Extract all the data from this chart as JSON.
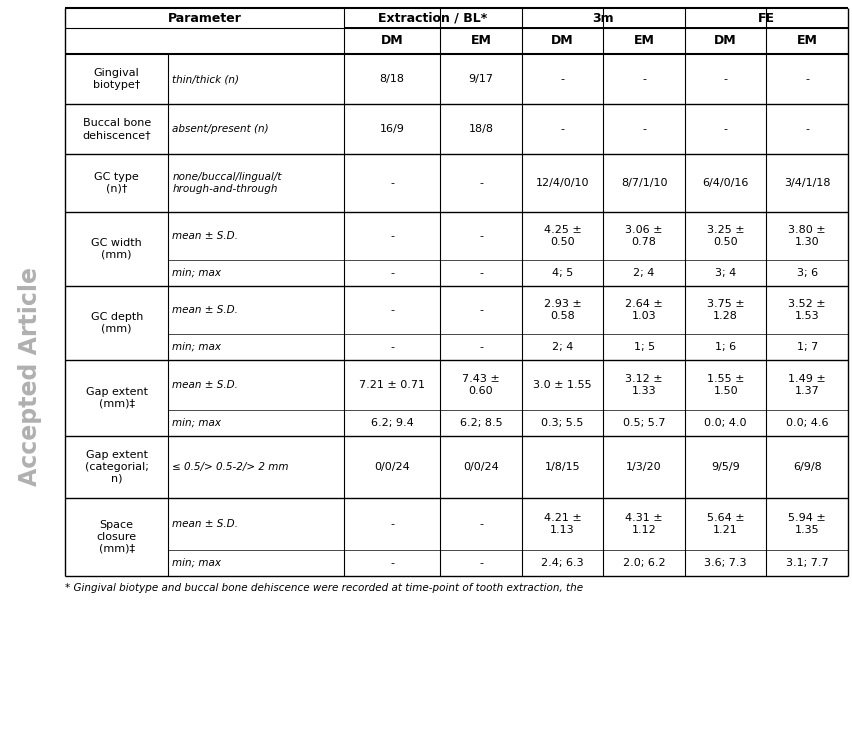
{
  "col_groups": [
    {
      "label": "Extraction / BL*",
      "cols": [
        2,
        3
      ]
    },
    {
      "label": "3m",
      "cols": [
        4,
        5
      ]
    },
    {
      "label": "FE",
      "cols": [
        6,
        7
      ]
    }
  ],
  "rows": [
    {
      "param": "Gingival\nbiotype†",
      "subparam": "thin/thick (n)",
      "cells": [
        "8/18",
        "9/17",
        "-",
        "-",
        "-",
        "-"
      ],
      "has_subrow": false
    },
    {
      "param": "Buccal bone\ndehiscence†",
      "subparam": "absent/present (n)",
      "cells": [
        "16/9",
        "18/8",
        "-",
        "-",
        "-",
        "-"
      ],
      "has_subrow": false
    },
    {
      "param": "GC type\n(n)†",
      "subparam": "none/buccal/lingual/t\nhrough-and-through",
      "cells": [
        "-",
        "-",
        "12/4/0/10",
        "8/7/1/10",
        "6/4/0/16",
        "3/4/1/18"
      ],
      "has_subrow": false
    },
    {
      "param": "GC width\n(mm)",
      "subparam": "mean ± S.D.",
      "cells": [
        "-",
        "-",
        "4.25 ±\n0.50",
        "3.06 ±\n0.78",
        "3.25 ±\n0.50",
        "3.80 ±\n1.30"
      ],
      "has_subrow": true,
      "subrow_subparam": "min; max",
      "subrow_cells": [
        "-",
        "-",
        "4; 5",
        "2; 4",
        "3; 4",
        "3; 6"
      ]
    },
    {
      "param": "GC depth\n(mm)",
      "subparam": "mean ± S.D.",
      "cells": [
        "-",
        "-",
        "2.93 ±\n0.58",
        "2.64 ±\n1.03",
        "3.75 ±\n1.28",
        "3.52 ±\n1.53"
      ],
      "has_subrow": true,
      "subrow_subparam": "min; max",
      "subrow_cells": [
        "-",
        "-",
        "2; 4",
        "1; 5",
        "1; 6",
        "1; 7"
      ]
    },
    {
      "param": "Gap extent\n(mm)‡",
      "subparam": "mean ± S.D.",
      "cells": [
        "7.21 ± 0.71",
        "7.43 ±\n0.60",
        "3.0 ± 1.55",
        "3.12 ±\n1.33",
        "1.55 ±\n1.50",
        "1.49 ±\n1.37"
      ],
      "has_subrow": true,
      "subrow_subparam": "min; max",
      "subrow_cells": [
        "6.2; 9.4",
        "6.2; 8.5",
        "0.3; 5.5",
        "0.5; 5.7",
        "0.0; 4.0",
        "0.0; 4.6"
      ]
    },
    {
      "param": "Gap extent\n(categorial;\nn)",
      "subparam": "≤ 0.5/> 0.5-2/> 2 mm",
      "cells": [
        "0/0/24",
        "0/0/24",
        "1/8/15",
        "1/3/20",
        "9/5/9",
        "6/9/8"
      ],
      "has_subrow": false
    },
    {
      "param": "Space\nclosure\n(mm)‡",
      "subparam": "mean ± S.D.",
      "cells": [
        "-",
        "-",
        "4.21 ±\n1.13",
        "4.31 ±\n1.12",
        "5.64 ±\n1.21",
        "5.94 ±\n1.35"
      ],
      "has_subrow": true,
      "subrow_subparam": "min; max",
      "subrow_cells": [
        "-",
        "-",
        "2.4; 6.3",
        "2.0; 6.2",
        "3.6; 7.3",
        "3.1; 7.7"
      ]
    }
  ],
  "footnote": "* Gingival biotype and buccal bone dehiscence were recorded at time-point of tooth extraction, the",
  "bg_color": "#ffffff",
  "text_color": "#000000",
  "font_size": 8.0,
  "header_font_size": 9.0,
  "watermark_text": "Accepted Article",
  "watermark_color": "#b0b0b0"
}
